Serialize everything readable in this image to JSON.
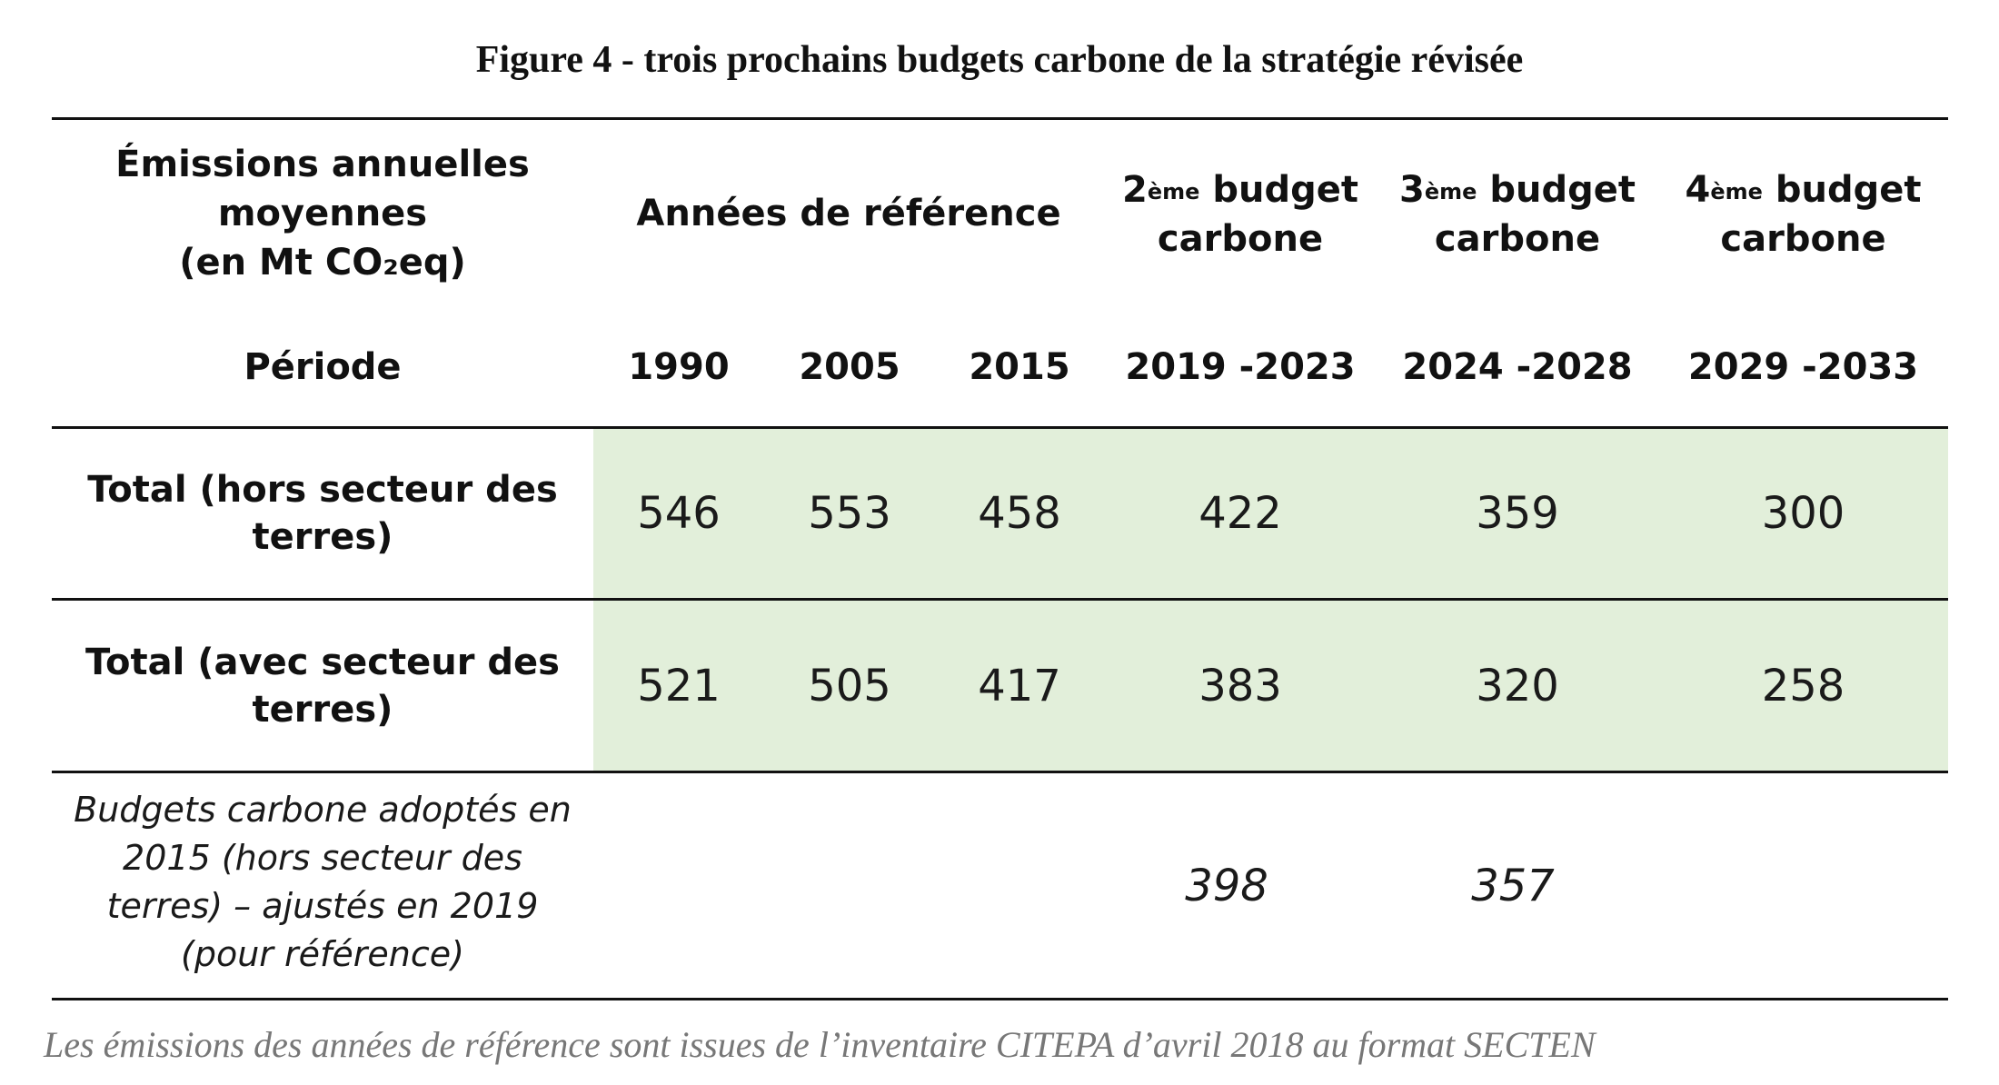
{
  "title": "Figure 4 - trois prochains budgets carbone de la stratégie révisée",
  "header": {
    "emissions_line1": "Émissions annuelles",
    "emissions_line2": "moyennes",
    "emissions_line3": "(en Mt CO₂eq)",
    "reference_years": "Années de référence",
    "budget2_num": "2",
    "budget2_sup": "ème",
    "budget3_num": "3",
    "budget3_sup": "ème",
    "budget4_num": "4",
    "budget4_sup": "ème",
    "budget_word": "budget",
    "carbone_word": "carbone",
    "periode": "Période",
    "periods": [
      "1990",
      "2005",
      "2015",
      "2019 -2023",
      "2024 -2028",
      "2029 -2033"
    ]
  },
  "rows": [
    {
      "label_line1": "Total (hors secteur des",
      "label_line2": "terres)",
      "values": [
        "546",
        "553",
        "458",
        "422",
        "359",
        "300"
      ]
    },
    {
      "label_line1": "Total (avec secteur des",
      "label_line2": "terres)",
      "values": [
        "521",
        "505",
        "417",
        "383",
        "320",
        "258"
      ]
    }
  ],
  "adopted": {
    "line1": "Budgets carbone adoptés en",
    "line2": "2015 (hors secteur des",
    "line3": "terres) – ajustés en 2019",
    "line4": "(pour référence)",
    "budget2": "398",
    "budget3": "357"
  },
  "footnote": "Les émissions des années de référence sont issues de l’inventaire CITEPA d’avril 2018 au format SECTEN",
  "colors": {
    "highlight": "#e2efda",
    "rule": "#111111",
    "footnote": "#777777"
  }
}
